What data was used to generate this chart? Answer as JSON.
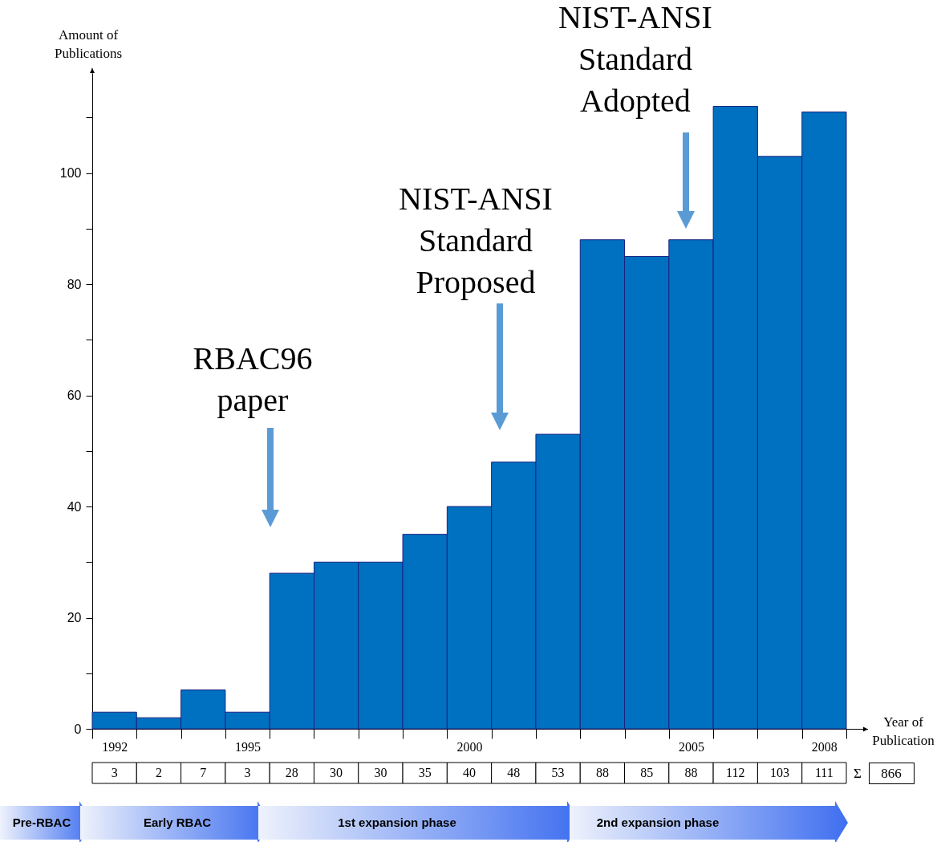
{
  "chart_data": {
    "type": "bar",
    "xlabel": "Year of Publication",
    "ylabel": "Amount of Publications",
    "categories": [
      "1992",
      null,
      null,
      "1995",
      null,
      null,
      null,
      null,
      "2000",
      null,
      null,
      null,
      null,
      "2005",
      null,
      null,
      "2008"
    ],
    "values": [
      3,
      2,
      7,
      3,
      28,
      30,
      30,
      35,
      40,
      48,
      53,
      88,
      85,
      88,
      112,
      103,
      111
    ],
    "color": "#0070c0",
    "ylim": [
      0,
      118
    ],
    "yticks": [
      0,
      {
        "value": 10,
        "label": null
      },
      20,
      {
        "value": 30,
        "label": null
      },
      40,
      {
        "value": 50,
        "label": null
      },
      60,
      {
        "value": 70,
        "label": null
      },
      80,
      {
        "value": 90,
        "label": null
      },
      100,
      {
        "value": 110,
        "label": null
      }
    ],
    "data_labels": true,
    "annotations": [
      "RBAC96 paper",
      "NIST-ANSI Standard Proposed",
      "NIST-ANSI Standard Adopted",
      "Pre-RBAC",
      "Early RBAC",
      "1st expansion phase",
      "2nd expansion phase",
      "Σ",
      "866"
    ]
  }
}
